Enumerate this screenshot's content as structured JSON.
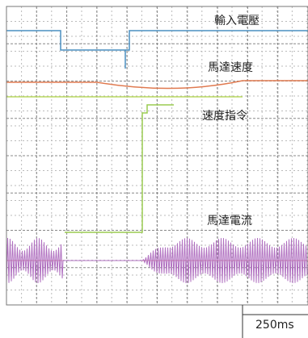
{
  "traces": {
    "input_voltage": "輸入電壓",
    "motor_speed": "馬達速度",
    "speed_command": "速度指令",
    "motor_current": "馬達電流"
  },
  "time_scale": "250ms"
}
